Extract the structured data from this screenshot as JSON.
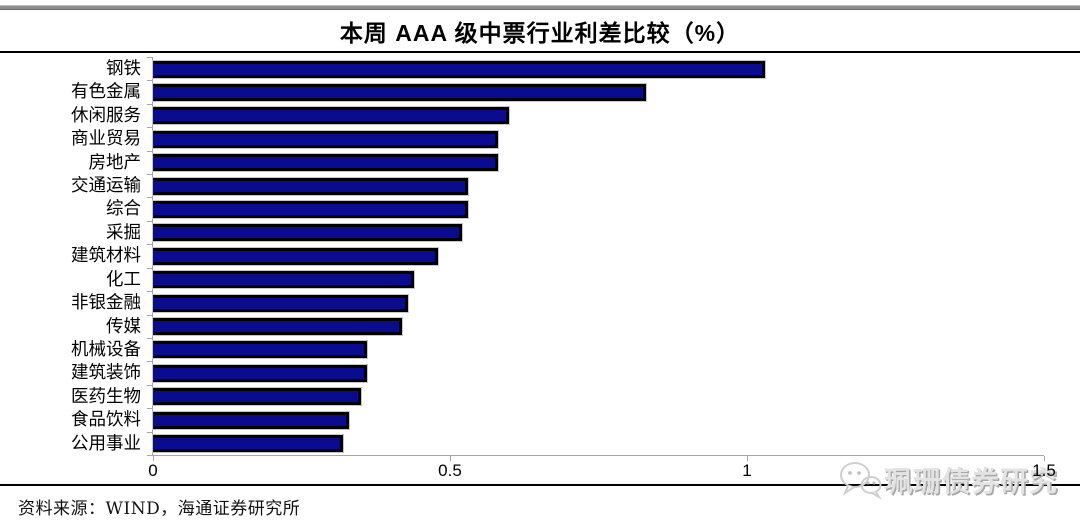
{
  "title": "本周 AAA 级中票行业利差比较（%）",
  "source_note": "资料来源：WIND，海通证券研究所",
  "watermark": {
    "icon": "wechat-icon",
    "text": "珮珊债券研究",
    "color": "#d9d9d9"
  },
  "colors": {
    "bar_fill": "#0b0b8f",
    "bar_border": "#000000",
    "axis": "#a6a6a6",
    "title": "#000000"
  },
  "chart_data": {
    "type": "bar",
    "orientation": "horizontal",
    "title": "本周 AAA 级中票行业利差比较（%）",
    "categories": [
      "钢铁",
      "有色金属",
      "休闲服务",
      "商业贸易",
      "房地产",
      "交通运输",
      "综合",
      "采掘",
      "建筑材料",
      "化工",
      "非银金融",
      "传媒",
      "机械设备",
      "建筑装饰",
      "医药生物",
      "食品饮料",
      "公用事业"
    ],
    "values": [
      1.03,
      0.83,
      0.6,
      0.58,
      0.58,
      0.53,
      0.53,
      0.52,
      0.48,
      0.44,
      0.43,
      0.42,
      0.36,
      0.36,
      0.35,
      0.33,
      0.32
    ],
    "xlabel": "",
    "ylabel": "",
    "xlim": [
      0,
      1.5
    ],
    "x_ticks": [
      "0",
      "0.5",
      "1",
      "1.5"
    ],
    "x_tick_values": [
      0,
      0.5,
      1,
      1.5
    ],
    "grid": false,
    "legend": null
  }
}
